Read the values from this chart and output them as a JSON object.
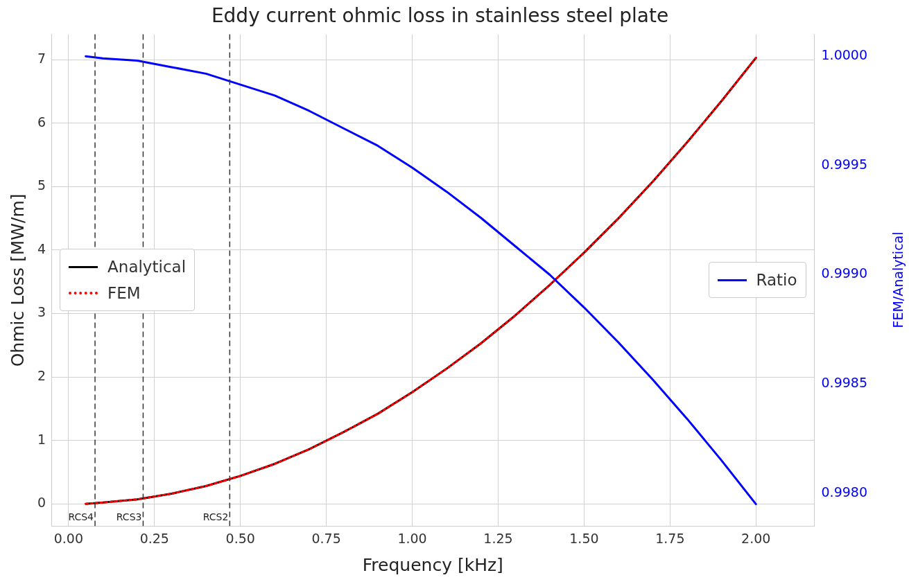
{
  "chart_data": {
    "type": "line",
    "title": "Eddy current ohmic loss in stainless steel plate",
    "xlabel": "Frequency [kHz]",
    "ylabel": "Ohmic Loss [MW/m]",
    "y2label": "FEM/Analytical",
    "x": [
      0.05,
      0.1,
      0.2,
      0.3,
      0.4,
      0.5,
      0.6,
      0.7,
      0.8,
      0.9,
      1.0,
      1.1,
      1.2,
      1.3,
      1.4,
      1.5,
      1.6,
      1.7,
      1.8,
      1.9,
      2.0
    ],
    "series": [
      {
        "name": "Analytical",
        "color": "#000000",
        "line_style": "solid",
        "values": [
          0.0,
          0.02,
          0.07,
          0.16,
          0.28,
          0.44,
          0.63,
          0.86,
          1.13,
          1.42,
          1.76,
          2.13,
          2.53,
          2.97,
          3.45,
          3.96,
          4.5,
          5.08,
          5.7,
          6.35,
          7.03
        ]
      },
      {
        "name": "FEM",
        "color": "#ff0000",
        "line_style": "dotted",
        "values": [
          0.0,
          0.02,
          0.07,
          0.16,
          0.28,
          0.44,
          0.63,
          0.86,
          1.13,
          1.42,
          1.76,
          2.13,
          2.53,
          2.97,
          3.45,
          3.96,
          4.5,
          5.08,
          5.7,
          6.35,
          7.03
        ]
      },
      {
        "name": "Ratio",
        "color": "#0000ff",
        "axis": "y2",
        "line_style": "solid",
        "values": [
          1.0,
          0.99999,
          0.99998,
          0.99995,
          0.99992,
          0.99987,
          0.99982,
          0.99975,
          0.99967,
          0.99959,
          0.99949,
          0.99938,
          0.99926,
          0.99913,
          0.999,
          0.99885,
          0.99869,
          0.99852,
          0.99834,
          0.99815,
          0.99795
        ]
      }
    ],
    "xlim": [
      -0.05,
      2.17
    ],
    "xticks": [
      {
        "value": 0,
        "label": "0.00"
      },
      {
        "value": 0.25,
        "label": "0.25"
      },
      {
        "value": 0.5,
        "label": "0.50"
      },
      {
        "value": 0.75,
        "label": "0.75"
      },
      {
        "value": 1,
        "label": "1.00"
      },
      {
        "value": 1.25,
        "label": "1.25"
      },
      {
        "value": 1.5,
        "label": "1.50"
      },
      {
        "value": 1.75,
        "label": "1.75"
      },
      {
        "value": 2,
        "label": "2.00"
      }
    ],
    "ylim": [
      -0.35,
      7.4
    ],
    "yticks": [
      0,
      1,
      2,
      3,
      4,
      5,
      6,
      7
    ],
    "y2lim": [
      0.99785,
      1.0001
    ],
    "y2ticks": [
      {
        "value": 0.998,
        "label": "0.9980"
      },
      {
        "value": 0.9985,
        "label": "0.9985"
      },
      {
        "value": 0.999,
        "label": "0.9990"
      },
      {
        "value": 0.9995,
        "label": "0.9995"
      },
      {
        "value": 1,
        "label": "1.0000"
      }
    ],
    "ref_lines": [
      {
        "axis": "x",
        "value": 0.077,
        "label": "RCS4",
        "color": "#333333",
        "line_style": "dashed"
      },
      {
        "axis": "x",
        "value": 0.217,
        "label": "RCS3",
        "color": "#333333",
        "line_style": "dashed"
      },
      {
        "axis": "x",
        "value": 0.469,
        "label": "RCS2",
        "color": "#333333",
        "line_style": "dashed"
      }
    ],
    "grid": true,
    "legend": "left",
    "marker": "none"
  }
}
